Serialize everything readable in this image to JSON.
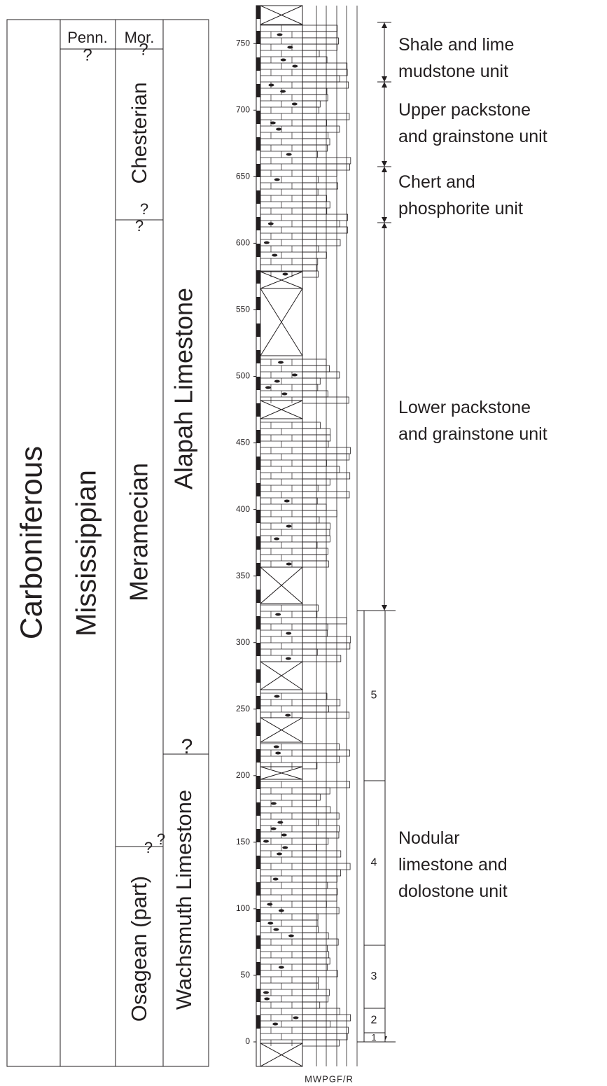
{
  "chronostratigraphy": {
    "system": "Carboniferous",
    "subsystems": [
      "Penn.",
      "Mississippian"
    ],
    "series": [
      "Mor.",
      "Chesterian",
      "Meramecian",
      "Osagean (part)"
    ],
    "formations": [
      "Alapah Limestone",
      "Wachsmuth Limestone"
    ],
    "question_marks": [
      "?",
      "?",
      "?",
      "?",
      "?",
      "?",
      "?"
    ]
  },
  "depth_scale": {
    "ticks": [
      0,
      50,
      100,
      150,
      200,
      250,
      300,
      350,
      400,
      450,
      500,
      550,
      600,
      650,
      700,
      750
    ]
  },
  "texture_axis_label": "MWPGF/R",
  "units": [
    {
      "label": [
        "Shale and lime",
        "mudstone unit"
      ]
    },
    {
      "label": [
        "Upper packstone",
        "and grainstone unit"
      ]
    },
    {
      "label": [
        "Chert and",
        "phosphorite unit"
      ]
    },
    {
      "label": [
        "Lower packstone",
        "and grainstone unit"
      ]
    },
    {
      "label": [
        "Nodular",
        "limestone and",
        "dolostone unit"
      ]
    }
  ],
  "subunits": [
    "1",
    "2",
    "3",
    "4",
    "5"
  ]
}
